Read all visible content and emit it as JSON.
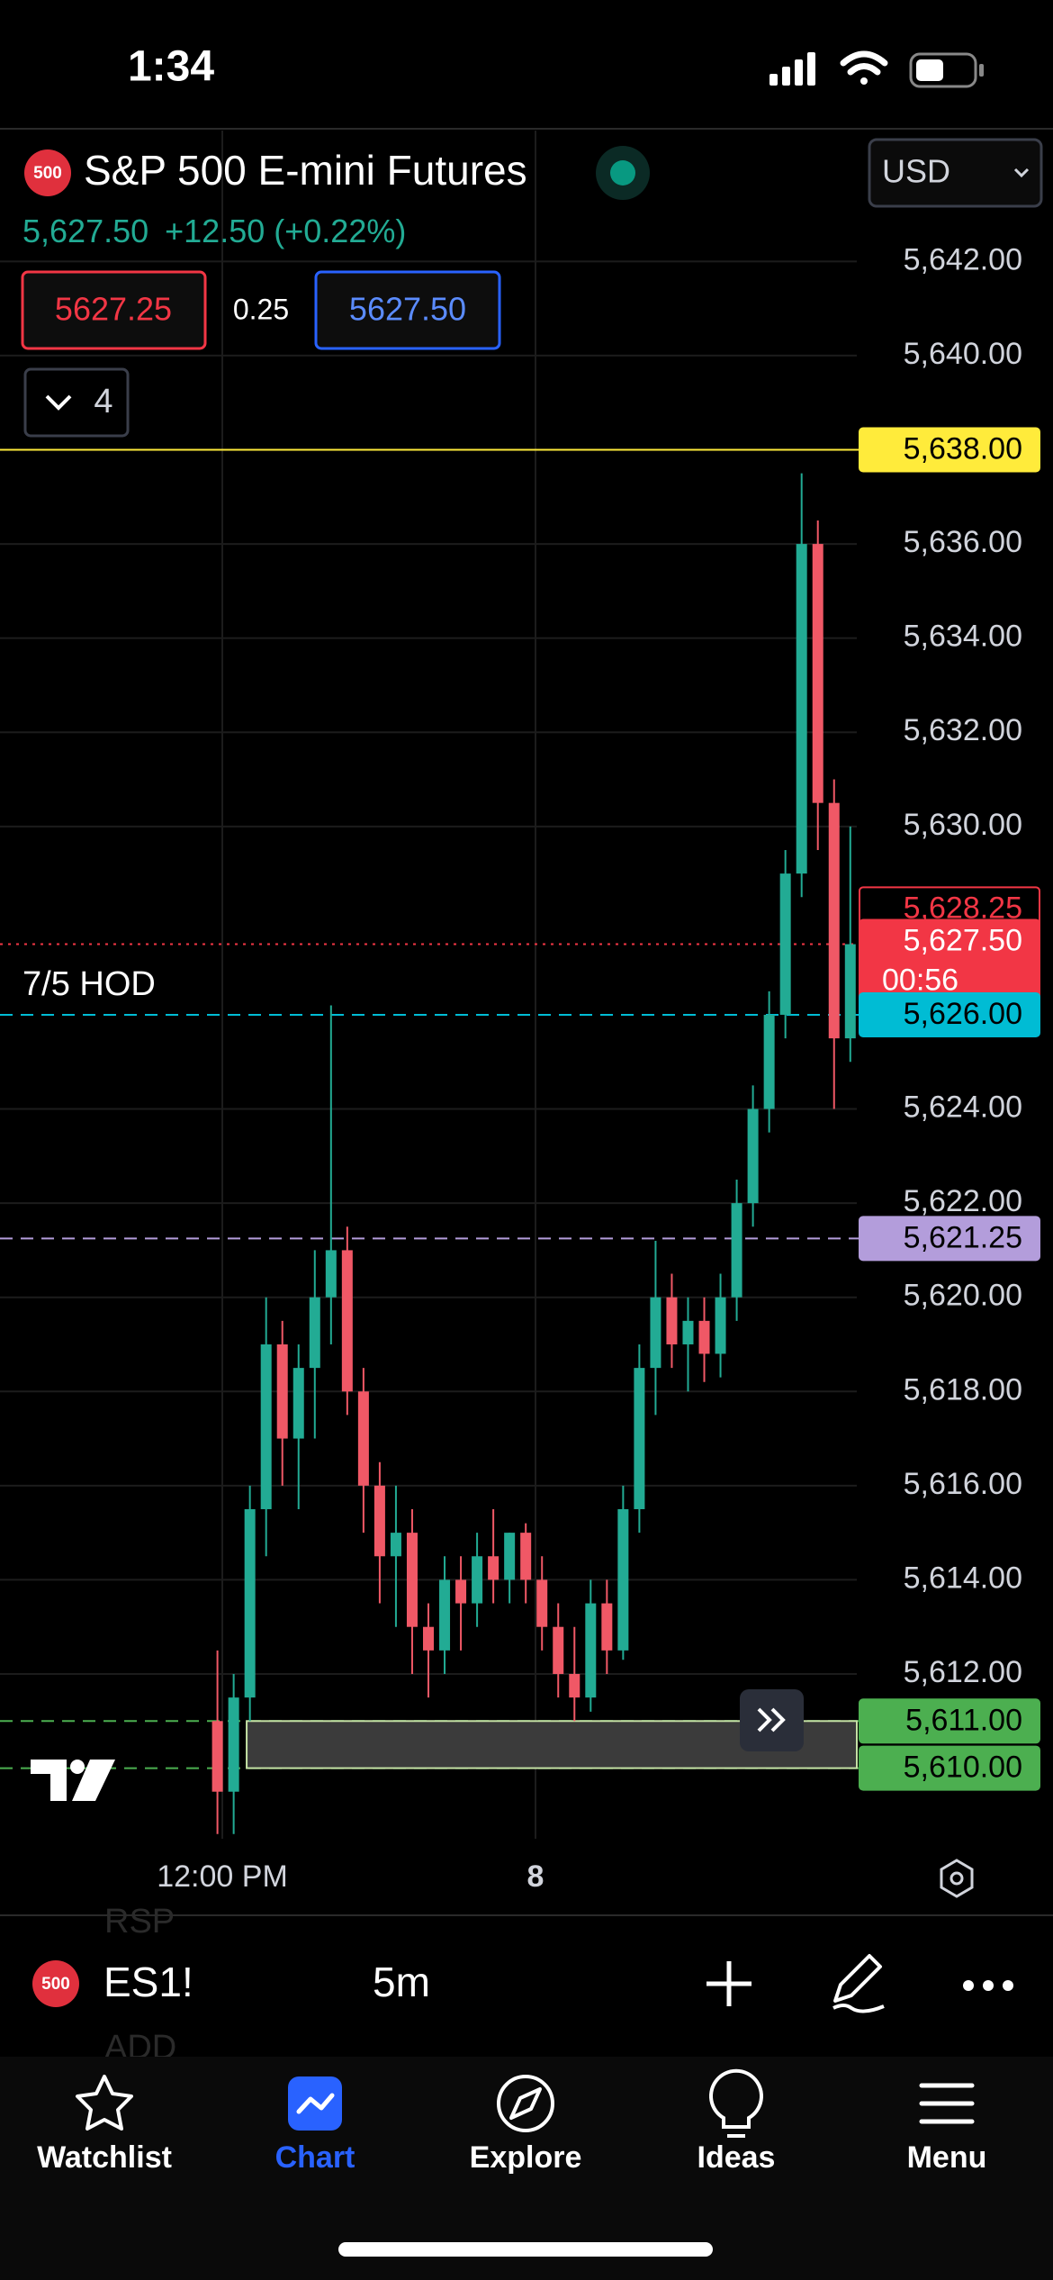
{
  "status_bar": {
    "time": "1:34"
  },
  "header": {
    "exchange_badge": "500",
    "title": "S&P 500 E-mini Futures",
    "last_price": "5,627.50",
    "change": "+12.50",
    "change_percent": "(+0.22%)",
    "bid": "5627.25",
    "spread": "0.25",
    "ask": "5627.50",
    "indicators_count": "4",
    "currency": "USD"
  },
  "chart_data": {
    "type": "candlestick",
    "up_color": "#22ab94",
    "down_color": "#f05866",
    "grid": true,
    "open": [
      5611,
      5609.5,
      5611.5,
      5615.5,
      5619,
      5617,
      5618.5,
      5620,
      5621,
      5618,
      5616,
      5614.5,
      5615,
      5613,
      5612.5,
      5614,
      5613.5,
      5614.5,
      5614,
      5615,
      5614,
      5613,
      5612,
      5611.5,
      5613.5,
      5612.5,
      5615.5,
      5618.5,
      5620,
      5619,
      5619.5,
      5618.8,
      5620,
      5622,
      5624,
      5626,
      5629,
      5636,
      5630.5,
      5625.5
    ],
    "high": [
      5612.5,
      5612,
      5616,
      5620,
      5619.5,
      5619,
      5621,
      5626.2,
      5621.5,
      5618.5,
      5616.5,
      5616,
      5615.5,
      5613.5,
      5614.5,
      5614.5,
      5615,
      5615.5,
      5615,
      5615.2,
      5614.5,
      5613.5,
      5613,
      5614,
      5614,
      5616,
      5619,
      5621.2,
      5620.5,
      5620,
      5620,
      5620.5,
      5622.5,
      5624.5,
      5626.5,
      5629.5,
      5637.5,
      5636.5,
      5631,
      5630
    ],
    "low": [
      5608.6,
      5608.6,
      5611,
      5614.5,
      5616,
      5615.5,
      5617,
      5619,
      5617.5,
      5615,
      5613.5,
      5613,
      5612,
      5611.5,
      5612,
      5612.5,
      5613,
      5613.5,
      5613.5,
      5613.5,
      5612.5,
      5611.5,
      5611,
      5611.2,
      5612,
      5612.3,
      5615,
      5617.5,
      5618.5,
      5618,
      5618.2,
      5618.3,
      5619.5,
      5621.5,
      5623.5,
      5625.5,
      5628.5,
      5629.5,
      5624,
      5625
    ],
    "close": [
      5609.5,
      5611.5,
      5615.5,
      5619,
      5617,
      5618.5,
      5620,
      5621,
      5618,
      5616,
      5614.5,
      5615,
      5613,
      5612.5,
      5614,
      5613.5,
      5614.5,
      5614,
      5615,
      5614,
      5613,
      5612,
      5611.5,
      5613.5,
      5612.5,
      5615.5,
      5618.5,
      5620,
      5619,
      5619.5,
      5618.8,
      5620,
      5622,
      5624,
      5626,
      5629,
      5636,
      5630.5,
      5625.5,
      5627.5
    ],
    "xlim": [
      -13.4,
      39.4
    ],
    "xticks": [
      {
        "value": 0.3,
        "label": "12:00 PM"
      },
      {
        "value": 19.6,
        "label": "8"
      }
    ],
    "ylim": [
      5608.5,
      5644.78
    ],
    "yticks": [
      {
        "value": 5612,
        "label": "5,612.00"
      },
      {
        "value": 5614,
        "label": "5,614.00"
      },
      {
        "value": 5616,
        "label": "5,616.00"
      },
      {
        "value": 5618,
        "label": "5,618.00"
      },
      {
        "value": 5620,
        "label": "5,620.00"
      },
      {
        "value": 5622,
        "label": "5,622.00"
      },
      {
        "value": 5624,
        "label": "5,624.00"
      },
      {
        "value": 5630,
        "label": "5,630.00"
      },
      {
        "value": 5632,
        "label": "5,632.00"
      },
      {
        "value": 5634,
        "label": "5,634.00"
      },
      {
        "value": 5636,
        "label": "5,636.00"
      },
      {
        "value": 5640,
        "label": "5,640.00"
      },
      {
        "value": 5642,
        "label": "5,642.00"
      }
    ],
    "price_lines": [
      {
        "value": 5638,
        "label": "5,638.00",
        "color": "#ffeb3b",
        "text_color": "#000000",
        "style": "solid",
        "badge_style": "fill"
      },
      {
        "value": 5628.25,
        "label": "5,628.25",
        "color": "#f23645",
        "text_color": "#f23645",
        "style": "none",
        "badge_style": "outline"
      },
      {
        "value": 5627.5,
        "label": "5,627.50",
        "sublabel": "00:56",
        "color": "#f23645",
        "text_color": "#ffffff",
        "style": "dotted",
        "badge_style": "fill"
      },
      {
        "value": 5626,
        "label": "5,626.00",
        "color": "#00bcd4",
        "text_color": "#000000",
        "style": "dashed",
        "badge_style": "fill"
      },
      {
        "value": 5621.25,
        "label": "5,621.25",
        "color": "#b39ddb",
        "text_color": "#000000",
        "style": "dashed",
        "badge_style": "fill"
      },
      {
        "value": 5611,
        "label": "5,611.00",
        "color": "#4caf50",
        "text_color": "#000000",
        "style": "dashed",
        "badge_style": "fill"
      },
      {
        "value": 5610,
        "label": "5,610.00",
        "color": "#4caf50",
        "text_color": "#000000",
        "style": "dashed",
        "badge_style": "fill"
      }
    ],
    "zone": {
      "low": 5610,
      "high": 5611,
      "x_start": 1.8
    },
    "annotations": [
      {
        "text": "7/5 HOD",
        "value": 5626
      }
    ]
  },
  "toolbar": {
    "badge": "500",
    "symbol": "ES1!",
    "interval": "5m",
    "ghost_symbols": [
      "RSP",
      "ADD"
    ]
  },
  "tab_bar": {
    "tabs": [
      "Watchlist",
      "Chart",
      "Explore",
      "Ideas",
      "Menu"
    ],
    "active_tab": 1
  }
}
